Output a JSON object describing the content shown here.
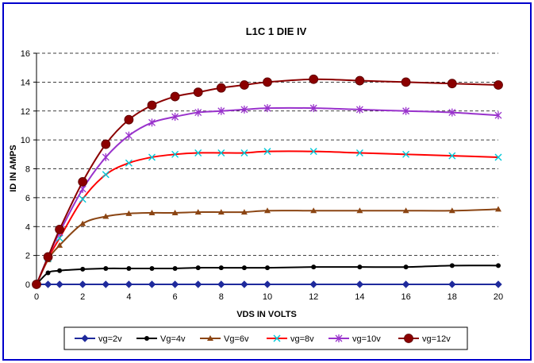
{
  "chart_data": {
    "type": "line",
    "title": "L1C 1 DIE IV",
    "xlabel": "VDS IN VOLTS",
    "ylabel": "ID IN AMPS",
    "xlim": [
      0,
      20
    ],
    "ylim": [
      0,
      16
    ],
    "xticks": [
      0,
      2,
      4,
      6,
      8,
      10,
      12,
      14,
      16,
      18,
      20
    ],
    "yticks": [
      0,
      2,
      4,
      6,
      8,
      10,
      12,
      14,
      16
    ],
    "grid": "horizontal dashed",
    "legend_position": "bottom",
    "x": [
      0,
      0.5,
      1,
      2,
      3,
      4,
      5,
      6,
      7,
      8,
      9,
      10,
      12,
      14,
      16,
      18,
      20
    ],
    "series": [
      {
        "name": "vg=2v",
        "color": "#1f2a9c",
        "marker": "diamond",
        "values": [
          0,
          0,
          0,
          0,
          0,
          0,
          0,
          0,
          0,
          0,
          0,
          0,
          0,
          0,
          0,
          0,
          0
        ]
      },
      {
        "name": "Vg=4v",
        "color": "#000000",
        "marker": "circle",
        "values": [
          0,
          0.8,
          0.95,
          1.05,
          1.1,
          1.1,
          1.1,
          1.1,
          1.15,
          1.15,
          1.15,
          1.15,
          1.2,
          1.2,
          1.2,
          1.3,
          1.3
        ]
      },
      {
        "name": "Vg=6v",
        "color": "#8b4513",
        "marker": "triangle",
        "values": [
          0,
          1.7,
          2.7,
          4.2,
          4.7,
          4.9,
          4.95,
          4.95,
          5.0,
          5.0,
          5.0,
          5.1,
          5.1,
          5.1,
          5.1,
          5.1,
          5.2
        ]
      },
      {
        "name": "vg=8v",
        "color": "#ff0000",
        "marker": "x-cyan",
        "values": [
          0,
          1.8,
          3.2,
          5.9,
          7.6,
          8.4,
          8.8,
          9.0,
          9.1,
          9.1,
          9.1,
          9.2,
          9.2,
          9.1,
          9.0,
          8.9,
          8.8
        ]
      },
      {
        "name": "vg=10v",
        "color": "#9932cc",
        "marker": "star",
        "values": [
          0,
          1.9,
          3.6,
          6.6,
          8.8,
          10.3,
          11.2,
          11.6,
          11.9,
          12.0,
          12.1,
          12.2,
          12.2,
          12.1,
          12.0,
          11.9,
          11.7
        ]
      },
      {
        "name": "vg=12v",
        "color": "#8b0000",
        "marker": "bigcircle",
        "values": [
          0,
          1.9,
          3.8,
          7.1,
          9.7,
          11.4,
          12.4,
          13.0,
          13.3,
          13.6,
          13.8,
          14.0,
          14.2,
          14.1,
          14.0,
          13.9,
          13.8
        ]
      }
    ]
  },
  "colors": {
    "frame_border": "#0000cc",
    "background": "#ffffff",
    "grid": "#000000"
  }
}
